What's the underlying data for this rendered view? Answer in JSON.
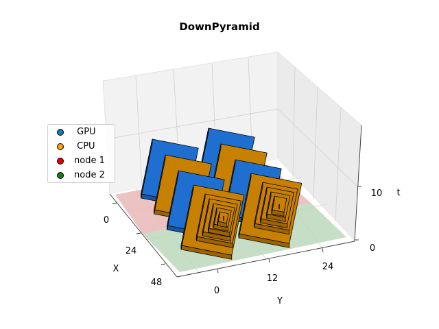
{
  "chart_data": {
    "type": "bar3d",
    "title": "DownPyramid",
    "xlabel": "X",
    "ylabel": "Y",
    "zlabel": "t",
    "x_ticks": [
      "0",
      "24",
      "48"
    ],
    "y_ticks": [
      "0",
      "12",
      "24"
    ],
    "z_ticks": [
      "0",
      "10"
    ],
    "legend": {
      "placement": "center-left",
      "items": [
        {
          "label": " GPU",
          "color": "#1f77b4"
        },
        {
          "label": " CPU",
          "color": "#ff9f1a"
        },
        {
          "label": "node 1",
          "color": "#e00000"
        },
        {
          "label": "node 2",
          "color": "#1a7a1a"
        }
      ]
    },
    "floor_regions": [
      {
        "name": "node 1",
        "color": "#e8b9b9",
        "y_range": [
          0,
          16
        ]
      },
      {
        "name": "node 2",
        "color": "#bcd7bc",
        "y_range": [
          16,
          32
        ]
      }
    ],
    "series": [
      {
        "name": "GPU",
        "color": "#1e6fd0"
      },
      {
        "name": "CPU",
        "color": "#c88000"
      }
    ]
  }
}
